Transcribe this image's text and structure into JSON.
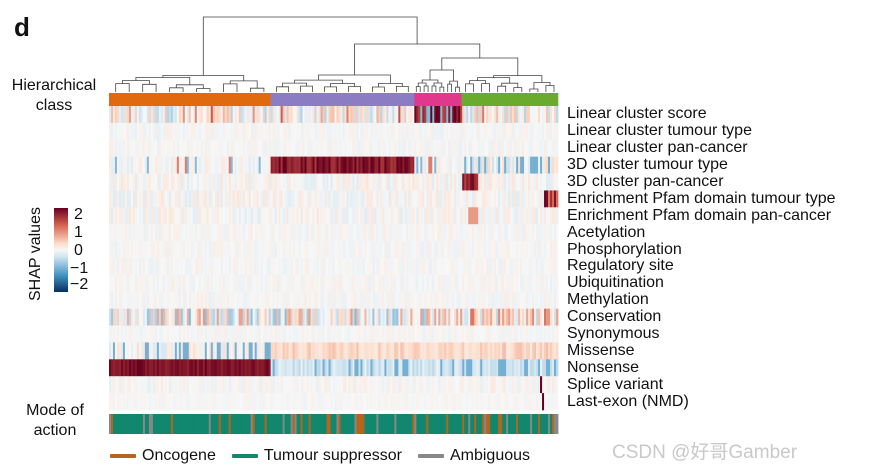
{
  "panel_label": "d",
  "row_labels": {
    "hierarchical_class": [
      "Hierarchical",
      "class"
    ],
    "mode_of_action": [
      "Mode of",
      "action"
    ]
  },
  "chart_data": {
    "type": "heatmap",
    "colorbar": {
      "title": "SHAP values",
      "ticks": [
        "2",
        "1",
        "0",
        "−1",
        "−2"
      ],
      "range": [
        -2,
        2
      ],
      "colors": {
        "high": "#67001f",
        "mid": "#f7f7f7",
        "low": "#053061"
      }
    },
    "features": [
      "Linear cluster score",
      "Linear cluster tumour type",
      "Linear cluster pan-cancer",
      "3D cluster tumour type",
      "3D cluster pan-cancer",
      "Enrichment Pfam domain tumour type",
      "Enrichment Pfam domain pan-cancer",
      "Acetylation",
      "Phosphorylation",
      "Regulatory site",
      "Ubiquitination",
      "Methylation",
      "Conservation",
      "Synonymous",
      "Missense",
      "Nonsense",
      "Splice variant",
      "Last-exon (NMD)"
    ],
    "hierarchical_classes": [
      {
        "color": "#e06a10",
        "fraction": 0.36
      },
      {
        "color": "#8b7cc4",
        "fraction": 0.32
      },
      {
        "color": "#e0388c",
        "fraction": 0.105
      },
      {
        "color": "#6aaa2c",
        "fraction": 0.215
      }
    ],
    "legend": [
      {
        "label": "Oncogene",
        "color": "#b5651d"
      },
      {
        "label": "Tumour suppressor",
        "color": "#11876e"
      },
      {
        "label": "Ambiguous",
        "color": "#888888"
      }
    ]
  },
  "watermark": "CSDN @好哥Gamber"
}
